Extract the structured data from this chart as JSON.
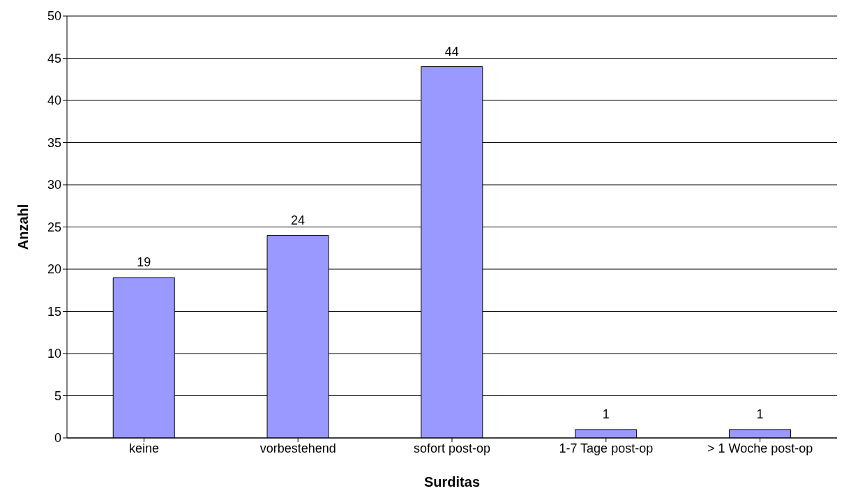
{
  "chart_data": {
    "type": "bar",
    "xlabel": "Surditas",
    "ylabel": "Anzahl",
    "categories": [
      "keine",
      "vorbestehend",
      "sofort post-op",
      "1-7 Tage post-op",
      "> 1 Woche post-op"
    ],
    "values": [
      19,
      24,
      44,
      1,
      1
    ],
    "color": "#9999ff",
    "ylim": [
      0,
      50
    ],
    "yticks": [
      0,
      5,
      10,
      15,
      20,
      25,
      30,
      35,
      40,
      45,
      50
    ],
    "grid": "y",
    "data_labels": true
  }
}
